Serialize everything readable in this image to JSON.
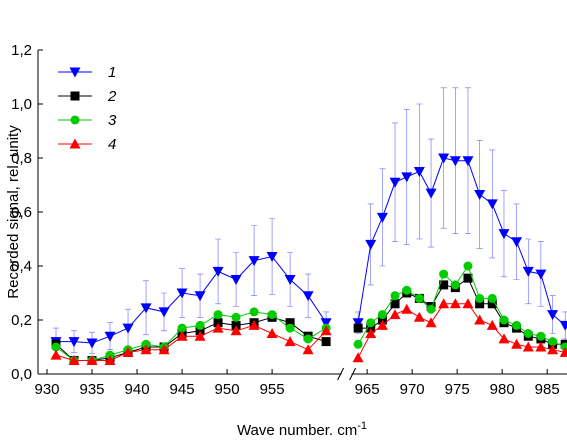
{
  "chart_data": {
    "type": "line",
    "xlabel": "Wave number. cm",
    "xlabel_sup": "-1",
    "ylabel": "Recorded signal, rel. unity",
    "x": [
      931,
      933,
      935,
      937,
      939,
      941,
      943,
      945,
      947,
      949,
      951,
      953,
      955,
      957,
      959,
      961,
      964.0,
      965.4,
      966.7,
      968.1,
      969.4,
      970.8,
      972.1,
      973.5,
      974.8,
      976.2,
      977.5,
      978.9,
      980.2,
      981.6,
      982.9,
      984.3,
      985.6,
      987.0
    ],
    "xlim": [
      929,
      987.2
    ],
    "x_break": [
      962.5,
      963.5
    ],
    "xticks": [
      930,
      935,
      940,
      945,
      950,
      955,
      965,
      970,
      975,
      980,
      985
    ],
    "ylim": [
      0,
      1.2
    ],
    "yticks": [
      {
        "value": 0,
        "label": "0,0"
      },
      {
        "value": 0.2,
        "label": "0,2"
      },
      {
        "value": 0.4,
        "label": "0,4"
      },
      {
        "value": 0.6,
        "label": "0,6"
      },
      {
        "value": 0.8,
        "label": "0,8"
      },
      {
        "value": 1.0,
        "label": "1,0"
      },
      {
        "value": 1.2,
        "label": "1,2"
      }
    ],
    "legend": "upper left",
    "series": [
      {
        "name": "1",
        "color": "#0000ff",
        "marker": "triangle-down",
        "values": [
          0.12,
          0.12,
          0.115,
          0.14,
          0.17,
          0.245,
          0.23,
          0.3,
          0.29,
          0.38,
          0.35,
          0.42,
          0.435,
          0.35,
          0.29,
          0.19,
          0.19,
          0.48,
          0.58,
          0.71,
          0.73,
          0.75,
          0.67,
          0.8,
          0.79,
          0.79,
          0.665,
          0.63,
          0.52,
          0.49,
          0.38,
          0.37,
          0.22,
          0.18
        ],
        "errors": [
          0.05,
          0.04,
          0.04,
          0.05,
          0.07,
          0.1,
          0.07,
          0.09,
          0.08,
          0.12,
          0.1,
          0.13,
          0.14,
          0.1,
          0.08,
          0.04,
          0.04,
          0.15,
          0.18,
          0.22,
          0.25,
          0.25,
          0.2,
          0.26,
          0.27,
          0.27,
          0.2,
          0.2,
          0.16,
          0.14,
          0.12,
          0.12,
          0.07,
          0.05
        ]
      },
      {
        "name": "2",
        "color": "#000000",
        "marker": "square",
        "values": [
          0.11,
          0.05,
          0.05,
          0.06,
          0.08,
          0.1,
          0.1,
          0.15,
          0.16,
          0.19,
          0.18,
          0.19,
          0.21,
          0.19,
          0.14,
          0.12,
          0.17,
          0.17,
          0.2,
          0.26,
          0.3,
          0.28,
          0.25,
          0.33,
          0.32,
          0.355,
          0.26,
          0.26,
          0.19,
          0.17,
          0.14,
          0.13,
          0.11,
          0.11
        ]
      },
      {
        "name": "3",
        "color": "#00cc00",
        "marker": "circle",
        "values": [
          0.1,
          0.05,
          0.05,
          0.07,
          0.09,
          0.11,
          0.1,
          0.17,
          0.18,
          0.22,
          0.21,
          0.23,
          0.22,
          0.17,
          0.13,
          0.17,
          0.11,
          0.19,
          0.22,
          0.29,
          0.31,
          0.28,
          0.24,
          0.37,
          0.33,
          0.4,
          0.28,
          0.28,
          0.2,
          0.18,
          0.15,
          0.14,
          0.12,
          0.1
        ]
      },
      {
        "name": "4",
        "color": "#ff0000",
        "marker": "triangle-up",
        "values": [
          0.07,
          0.05,
          0.05,
          0.05,
          0.08,
          0.09,
          0.09,
          0.14,
          0.14,
          0.17,
          0.16,
          0.18,
          0.15,
          0.12,
          0.09,
          0.16,
          0.06,
          0.15,
          0.18,
          0.22,
          0.24,
          0.21,
          0.19,
          0.26,
          0.26,
          0.26,
          0.2,
          0.18,
          0.13,
          0.11,
          0.1,
          0.1,
          0.09,
          0.08
        ]
      }
    ]
  }
}
